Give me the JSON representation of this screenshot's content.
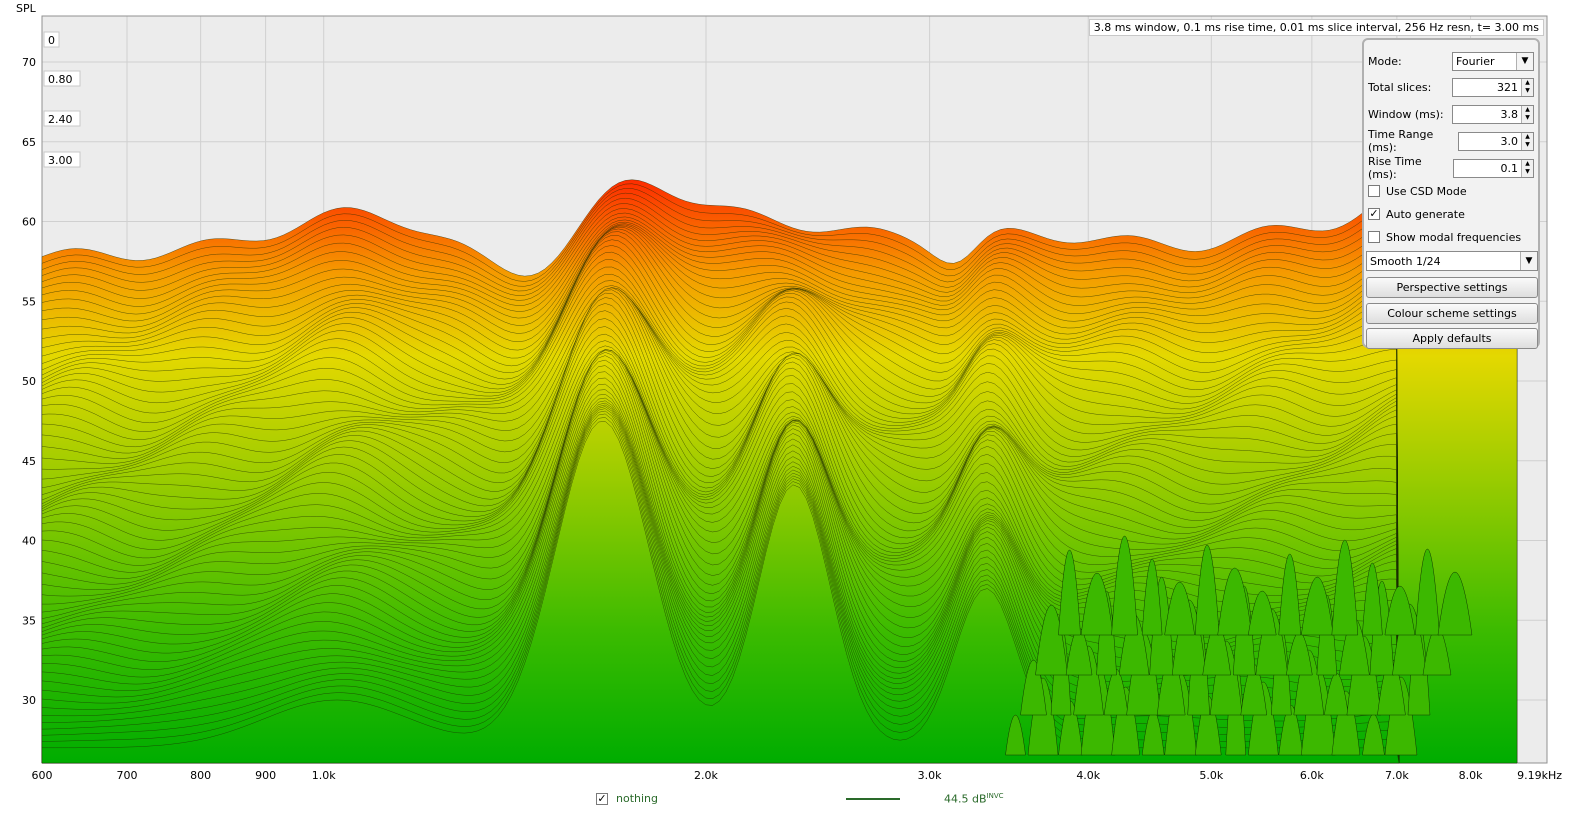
{
  "chart_data": {
    "type": "waterfall",
    "ylabel": "SPL",
    "yticks": [
      70,
      65,
      60,
      55,
      50,
      45,
      40,
      35,
      30
    ],
    "ylim": [
      26,
      73
    ],
    "xticks": [
      "600",
      "700",
      "800",
      "900",
      "1.0k",
      "2.0k",
      "3.0k",
      "4.0k",
      "5.0k",
      "6.0k",
      "7.0k",
      "8.0k",
      "9.19kHz"
    ],
    "xlim_hz": [
      600,
      9190
    ],
    "time_labels": [
      "0",
      "0.80",
      "2.40",
      "3.00"
    ],
    "info": "3.8 ms window, 0.1 ms rise time, 0.01 ms slice interval, 256 Hz resn, t= 3.00 ms",
    "front_slice_peaks_hz": [
      1750,
      2350,
      3400
    ],
    "colors": {
      "top": "#ff2a00",
      "upper": "#f6a000",
      "mid": "#e0dc00",
      "lower": "#70c000",
      "bottom": "#00b000"
    }
  },
  "panel": {
    "mode_label": "Mode:",
    "mode_value": "Fourier",
    "total_slices_label": "Total slices:",
    "total_slices_value": "321",
    "window_label": "Window (ms):",
    "window_value": "3.8",
    "time_range_label": "Time Range (ms):",
    "time_range_value": "3.0",
    "rise_time_label": "Rise Time (ms):",
    "rise_time_value": "0.1",
    "use_csd_label": "Use CSD Mode",
    "auto_generate_label": "Auto generate",
    "show_modal_label": "Show modal frequencies",
    "smoothing_value": "Smooth 1/24",
    "perspective_button": "Perspective settings",
    "colour_scheme_button": "Colour scheme settings",
    "apply_defaults_button": "Apply defaults"
  },
  "legend": {
    "name": "nothing",
    "value": "44.5 dB",
    "value_sup": "INVC",
    "color": "#2a6a2a"
  }
}
